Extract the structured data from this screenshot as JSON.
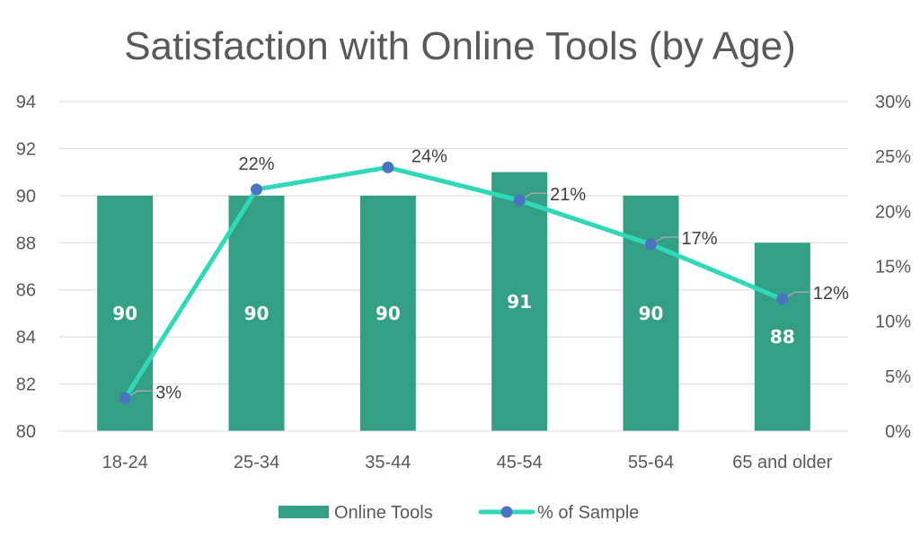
{
  "chart_data": {
    "type": "bar",
    "title": "Satisfaction with Online Tools (by Age)",
    "categories": [
      "18-24",
      "25-34",
      "35-44",
      "45-54",
      "55-64",
      "65 and older"
    ],
    "series": [
      {
        "name": "Online Tools",
        "type": "bar",
        "axis": "left",
        "values": [
          90,
          90,
          90,
          91,
          90,
          88
        ],
        "labels": [
          "90",
          "90",
          "90",
          "91",
          "90",
          "88"
        ],
        "color": "#33a086"
      },
      {
        "name": "% of Sample",
        "type": "line",
        "axis": "right",
        "values": [
          0.03,
          0.22,
          0.24,
          0.21,
          0.17,
          0.12
        ],
        "labels": [
          "3%",
          "22%",
          "24%",
          "21%",
          "17%",
          "12%"
        ],
        "color": "#2fd9b7",
        "marker_color": "#4a73c0"
      }
    ],
    "y_left": {
      "min": 80,
      "max": 94,
      "step": 2,
      "ticks": [
        "80",
        "82",
        "84",
        "86",
        "88",
        "90",
        "92",
        "94"
      ]
    },
    "y_right": {
      "min": 0,
      "max": 0.3,
      "step": 0.05,
      "ticks": [
        "0%",
        "5%",
        "10%",
        "15%",
        "20%",
        "25%",
        "30%"
      ]
    },
    "grid": true,
    "legend_position": "bottom",
    "text_color": "#595959",
    "grid_color": "#d9d9d9"
  }
}
